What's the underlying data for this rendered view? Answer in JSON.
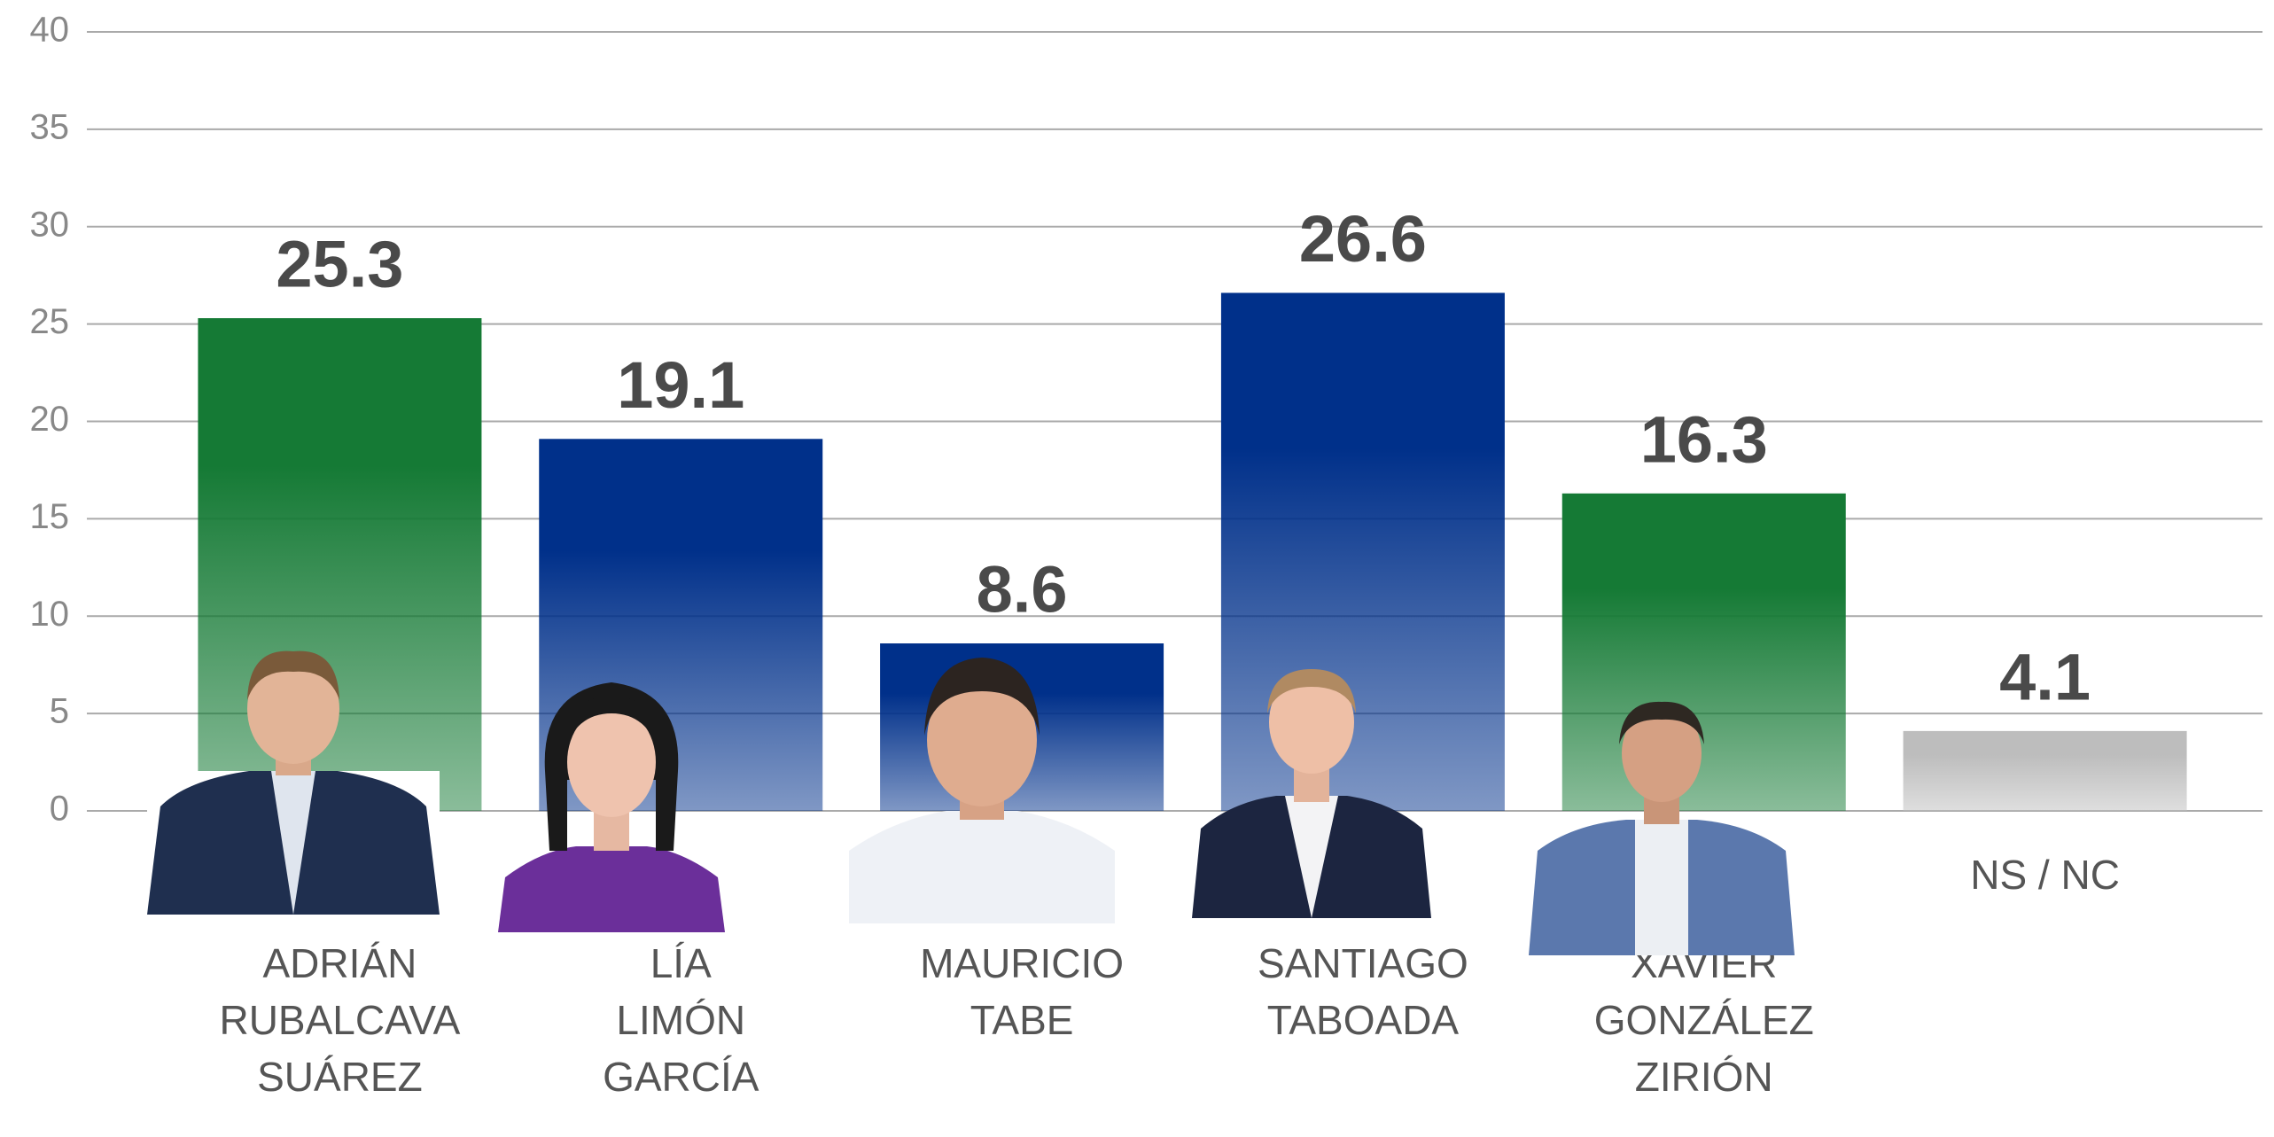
{
  "chart_data": {
    "type": "bar",
    "categories": [
      "ADRIÁN\nRUBALCAVA\nSUÁREZ",
      "LÍA\nLIMÓN\nGARCÍA",
      "MAURICIO\nTABE",
      "SANTIAGO\nTABOADA",
      "XAVIER\nGONZÁLEZ\nZIRIÓN",
      "NS / NC"
    ],
    "values": [
      25.3,
      19.1,
      8.6,
      26.6,
      16.3,
      4.1
    ],
    "colors": [
      "#157a35",
      "#00308a",
      "#00308a",
      "#00308a",
      "#157a35",
      "#bdbdbd"
    ],
    "ylim": [
      0,
      40
    ],
    "yticks": [
      0,
      5,
      10,
      15,
      20,
      25,
      30,
      35,
      40
    ],
    "grid": true
  }
}
